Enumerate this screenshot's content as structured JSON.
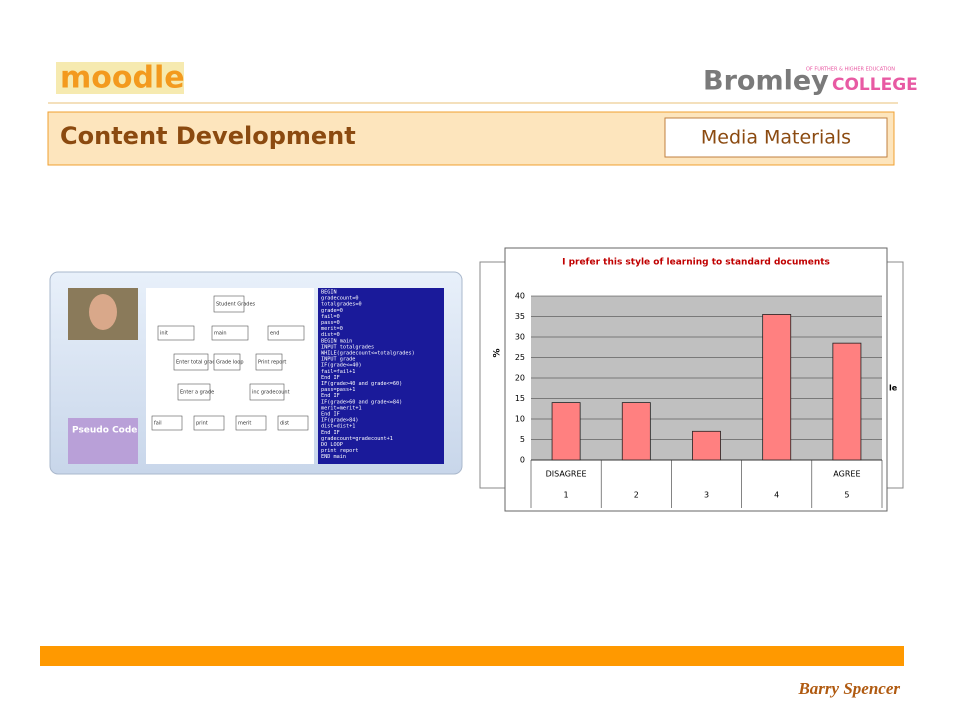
{
  "header": {
    "logo": "moodle",
    "college_name": "Bromley",
    "college_suffix": "COLLEGE",
    "college_tagline": "OF FURTHER & HIGHER EDUCATION",
    "title": "Content Development",
    "section": "Media Materials"
  },
  "footer": {
    "author": "Barry Spencer"
  },
  "screenshot": {
    "badge": "Pseudo Code",
    "flowchart": [
      "Student Grades",
      "init",
      "main",
      "end",
      "Enter total grades",
      "Grade loop",
      "Print report",
      "Enter a grade",
      "inc gradecount",
      "fail",
      "print",
      "merit",
      "dist"
    ],
    "code": [
      "BEGIN",
      "  gradecount=0",
      "  totalgrades=0",
      "  grade=0",
      "  fail=0",
      "  pass=0",
      "  merit=0",
      "  dist=0",
      "  BEGIN main",
      "    INPUT totalgrades",
      "    WHILE(gradecount<=totalgrades)",
      "      INPUT grade",
      "        IF(grade<=40)",
      "          fail=fail+1",
      "        End IF",
      "        IF(grade>40 and grade<=60)",
      "          pass=pass+1",
      "        End IF",
      "        IF(grade>60 and grade<=84)",
      "          merit=merit+1",
      "        End IF",
      "        IF(grade>84)",
      "          dist=dist+1",
      "        End IF",
      "      gradecount=gradecount+1",
      "    DO LOOP",
      "    print report",
      "  END main"
    ]
  },
  "background_fragment": "le",
  "chart_data": {
    "type": "bar",
    "title": "I prefer this style of learning to standard documents",
    "y_label": "%",
    "categories": [
      "1",
      "2",
      "3",
      "4",
      "5"
    ],
    "category_notes": [
      "DISAGREE",
      null,
      null,
      null,
      "AGREE"
    ],
    "values": [
      14,
      14,
      7,
      35.5,
      28.5
    ],
    "color": "#ff8080",
    "ylim": [
      0,
      40
    ],
    "yticks": [
      0,
      5,
      10,
      15,
      20,
      25,
      30,
      35,
      40
    ],
    "grid": true
  }
}
